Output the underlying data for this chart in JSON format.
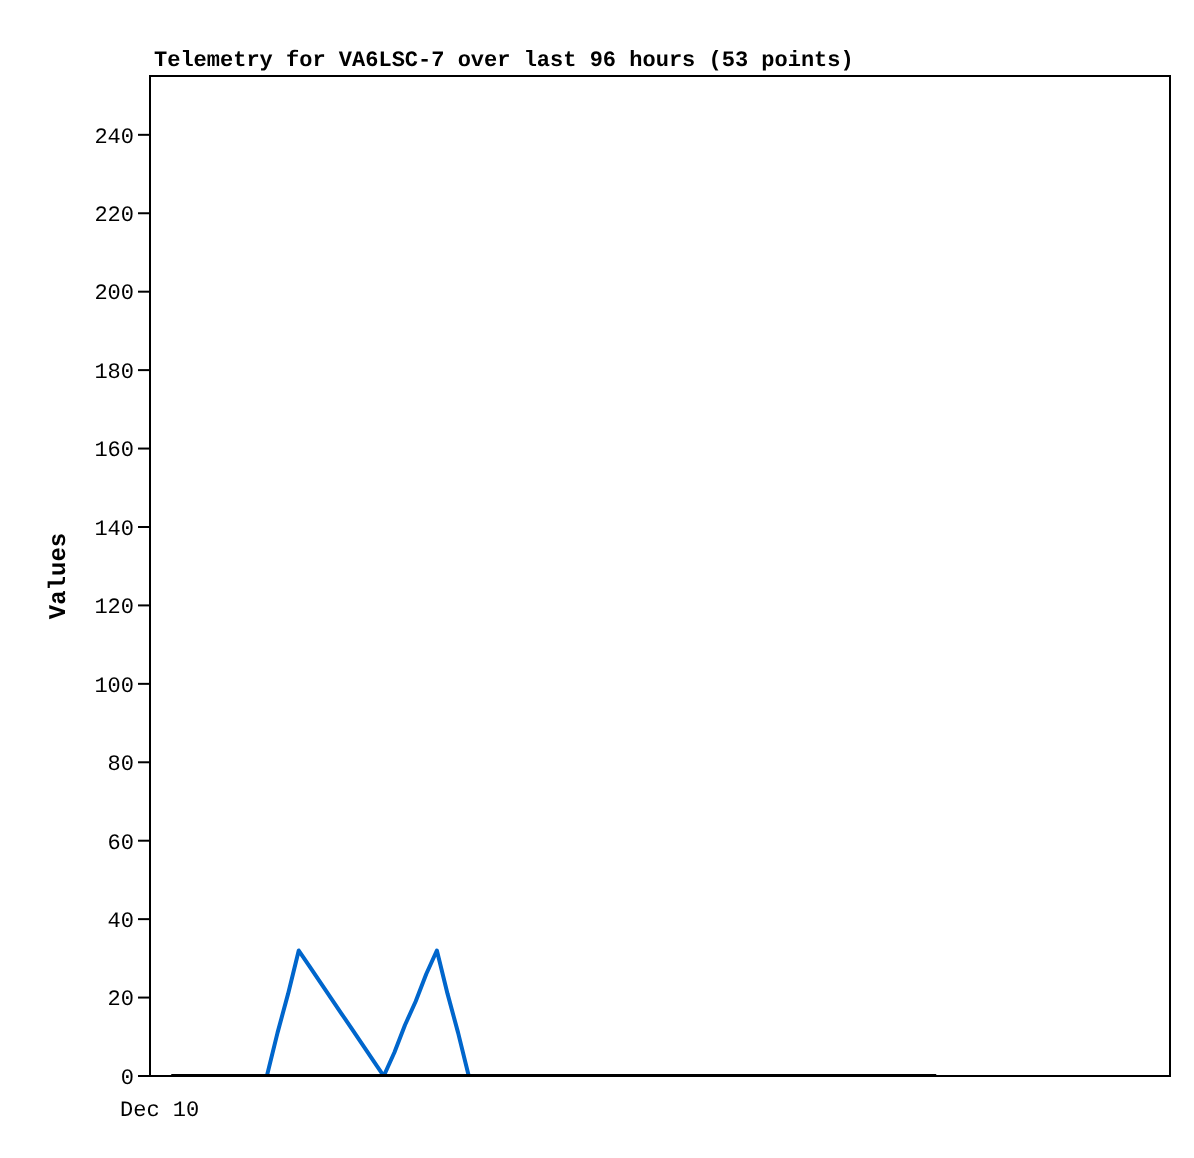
{
  "chart_data": {
    "type": "line",
    "title": "Telemetry for VA6LSC-7 over last 96 hours (53 points)",
    "ylabel": "Values",
    "annotations": [
      "Dec 10"
    ],
    "categories": [
      null,
      null,
      null,
      null,
      null,
      null,
      null,
      null,
      null,
      null,
      null,
      null,
      null,
      null,
      null,
      null,
      null,
      null,
      null,
      null,
      null,
      null,
      null,
      null,
      null,
      null,
      null,
      null,
      null,
      null,
      null,
      null,
      null,
      null,
      null,
      null,
      null,
      null,
      null,
      null,
      null,
      null,
      null,
      null,
      null,
      null,
      null,
      null,
      null,
      null,
      null,
      null,
      null,
      null,
      null,
      null,
      null,
      null,
      null,
      null,
      null,
      null,
      null,
      null,
      null,
      null,
      null,
      null,
      null,
      null,
      null,
      null,
      null,
      null,
      null,
      null,
      null,
      null,
      null,
      null,
      null,
      null,
      null,
      null,
      null,
      null,
      null,
      null,
      null,
      null,
      null,
      null,
      null,
      null,
      null,
      null,
      null
    ],
    "ylim": [
      0,
      255
    ],
    "yticks": [
      0,
      20,
      40,
      60,
      80,
      100,
      120,
      140,
      160,
      180,
      200,
      220,
      240
    ],
    "marker": "none",
    "line_style": "solid",
    "series": [
      {
        "color": "#0066cc",
        "values": [
          null,
          null,
          null,
          null,
          null,
          null,
          null,
          null,
          null,
          null,
          null,
          0,
          11,
          21,
          32,
          28,
          24,
          20,
          16,
          12,
          8,
          4,
          0,
          6,
          13,
          19,
          26,
          32,
          21,
          11,
          0,
          null,
          null,
          null,
          null,
          null,
          null,
          null,
          null,
          null,
          null,
          null,
          null,
          null,
          null,
          null,
          null,
          null,
          null,
          null,
          null,
          null,
          null,
          null,
          null,
          null,
          null,
          null,
          null,
          null,
          null,
          null,
          null,
          null,
          null,
          null,
          null,
          null,
          null,
          null,
          null,
          null,
          null,
          null,
          null,
          null,
          null,
          null,
          null,
          null,
          null,
          null,
          null,
          null,
          null,
          null,
          null,
          null,
          null,
          null,
          null,
          null,
          null,
          null,
          null,
          null,
          null
        ]
      },
      {
        "color": "#000000",
        "values": [
          null,
          null,
          0,
          0,
          0,
          0,
          0,
          0,
          0,
          0,
          0,
          0,
          0,
          0,
          0,
          0,
          0,
          0,
          0,
          0,
          0,
          0,
          0,
          0,
          0,
          0,
          0,
          0,
          0,
          0,
          0,
          0,
          0,
          0,
          0,
          0,
          0,
          0,
          0,
          0,
          0,
          0,
          0,
          0,
          0,
          0,
          0,
          0,
          0,
          0,
          0,
          0,
          0,
          0,
          0,
          0,
          0,
          0,
          0,
          0,
          0,
          0,
          0,
          0,
          0,
          0,
          0,
          0,
          0,
          0,
          0,
          0,
          0,
          0,
          0,
          null,
          null,
          null,
          null,
          null,
          null,
          null,
          null,
          null,
          null,
          null,
          null,
          null,
          null,
          null,
          null,
          null,
          null,
          null,
          null,
          null,
          null
        ]
      }
    ]
  }
}
